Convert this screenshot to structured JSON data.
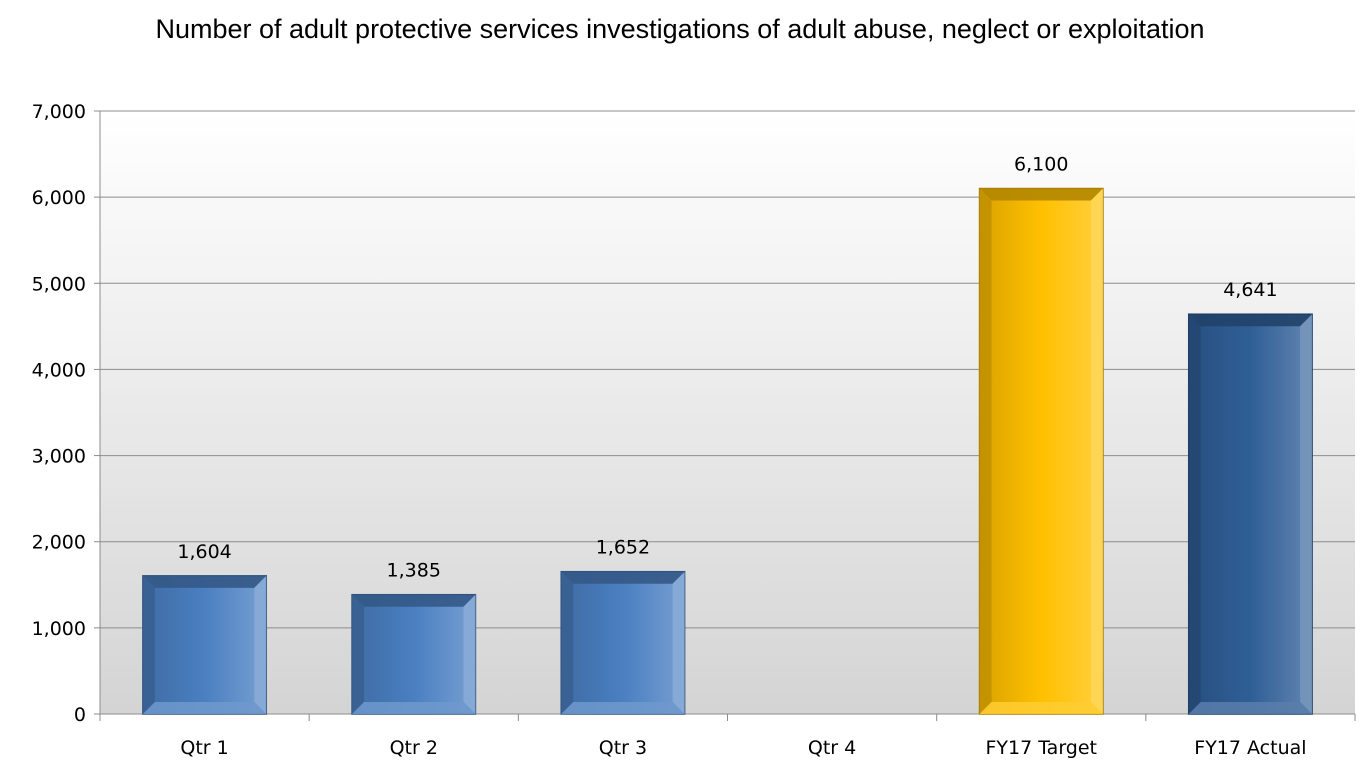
{
  "chart_data": {
    "type": "bar",
    "title": "Number of adult protective services investigations of adult abuse, neglect or exploitation",
    "categories": [
      "Qtr 1",
      "Qtr 2",
      "Qtr 3",
      "Qtr 4",
      "FY17 Target",
      "FY17 Actual"
    ],
    "values": [
      1604,
      1385,
      1652,
      null,
      6100,
      4641
    ],
    "data_labels": [
      "1,604",
      "1,385",
      "1,652",
      "",
      "6,100",
      "4,641"
    ],
    "bar_colors": [
      "#4a7fc1",
      "#4a7fc1",
      "#4a7fc1",
      "#4a7fc1",
      "#ffc000",
      "#2f5e96"
    ],
    "ylim": [
      0,
      7000
    ],
    "yticks": [
      0,
      1000,
      2000,
      3000,
      4000,
      5000,
      6000,
      7000
    ],
    "ytick_labels": [
      "0",
      "1,000",
      "2,000",
      "3,000",
      "4,000",
      "5,000",
      "6,000",
      "7,000"
    ],
    "xlabel": "",
    "ylabel": "",
    "grid": true,
    "legend": "none"
  }
}
